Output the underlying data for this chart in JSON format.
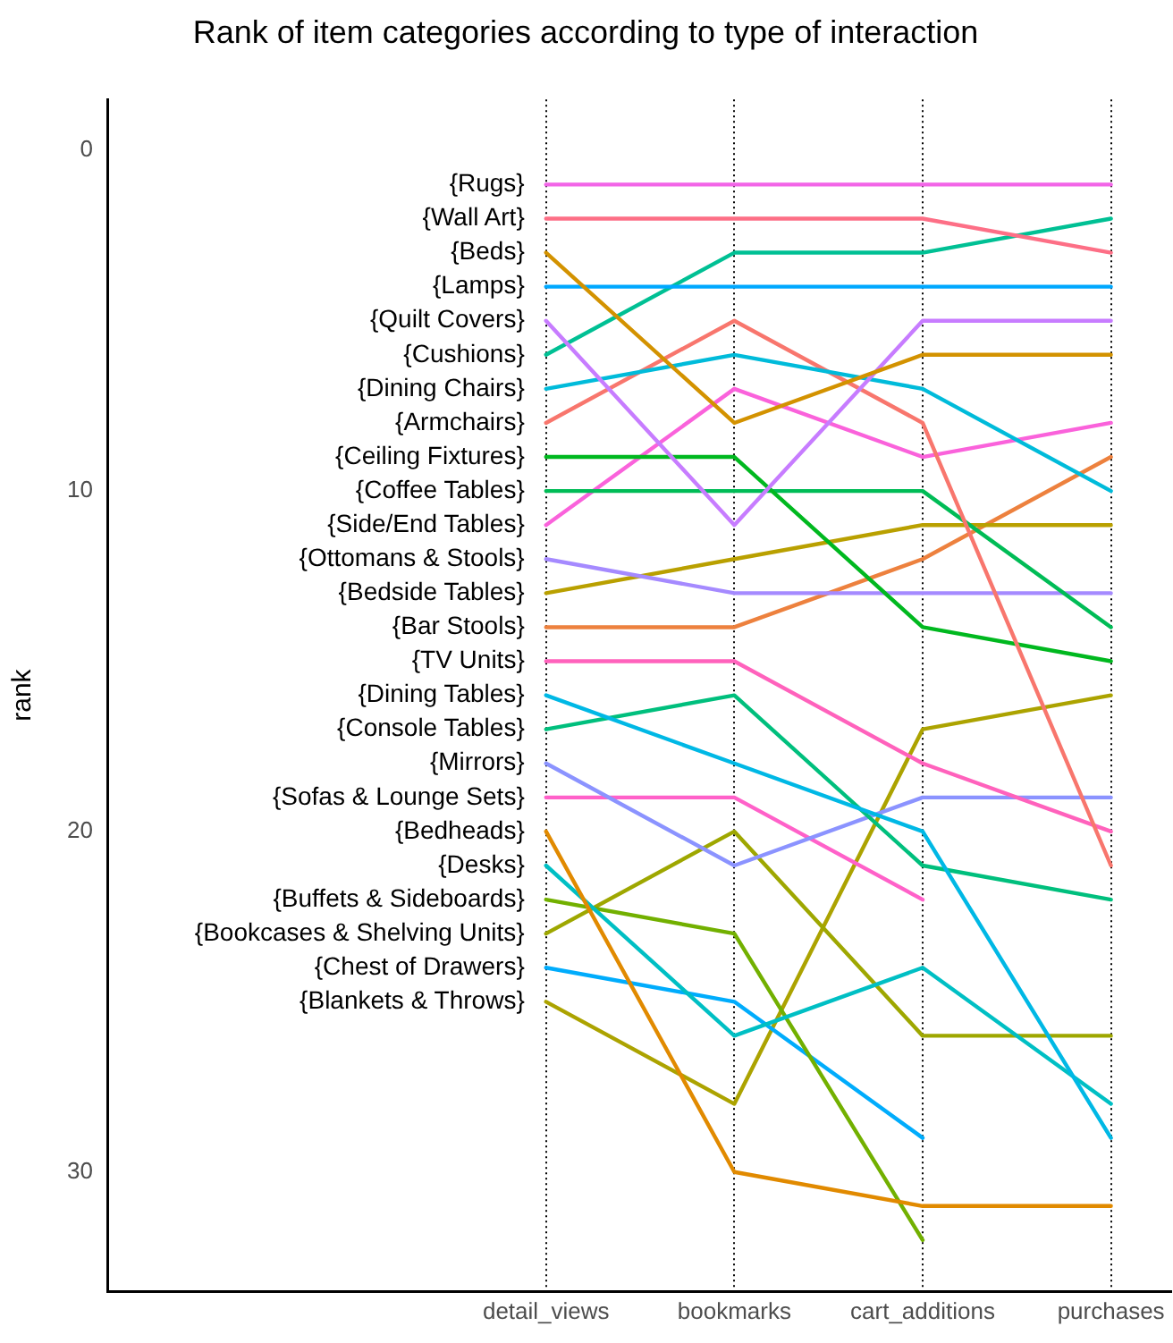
{
  "chart_data": {
    "type": "line",
    "title": "Rank of item categories according to type of interaction",
    "ylabel": "rank",
    "categories": [
      "detail_views",
      "bookmarks",
      "cart_additions",
      "purchases"
    ],
    "ylim": [
      33.5,
      -1.5
    ],
    "yticks": [
      0,
      10,
      20,
      30
    ],
    "grid": "x",
    "legend": false,
    "marker": "none",
    "line_style": "solid",
    "series": [
      {
        "name": "{Rugs}",
        "color": "#f265e7",
        "values": [
          1,
          1,
          1,
          1
        ]
      },
      {
        "name": "{Wall Art}",
        "color": "#fd6f86",
        "values": [
          2,
          2,
          2,
          3
        ]
      },
      {
        "name": "{Beds}",
        "color": "#d39200",
        "values": [
          3,
          8,
          6,
          6
        ]
      },
      {
        "name": "{Lamps}",
        "color": "#00a8ff",
        "values": [
          4,
          4,
          4,
          4
        ]
      },
      {
        "name": "{Quilt Covers}",
        "color": "#c77cff",
        "values": [
          5,
          11,
          5,
          5
        ]
      },
      {
        "name": "{Cushions}",
        "color": "#00c094",
        "values": [
          6,
          3,
          3,
          2
        ]
      },
      {
        "name": "{Dining Chairs}",
        "color": "#00bbda",
        "values": [
          7,
          6,
          7,
          10
        ]
      },
      {
        "name": "{Armchairs}",
        "color": "#f8766d",
        "values": [
          8,
          5,
          8,
          21
        ]
      },
      {
        "name": "{Ceiling Fixtures}",
        "color": "#00b81f",
        "values": [
          9,
          9,
          14,
          15
        ]
      },
      {
        "name": "{Coffee Tables}",
        "color": "#00bc56",
        "values": [
          10,
          10,
          10,
          14
        ]
      },
      {
        "name": "{Side/End Tables}",
        "color": "#fa62db",
        "values": [
          11,
          7,
          9,
          8
        ]
      },
      {
        "name": "{Ottomans & Stools}",
        "color": "#a58aff",
        "values": [
          12,
          13,
          13,
          13
        ]
      },
      {
        "name": "{Bedside Tables}",
        "color": "#b9a000",
        "values": [
          13,
          12,
          11,
          11
        ]
      },
      {
        "name": "{Bar Stools}",
        "color": "#ed813e",
        "values": [
          14,
          14,
          12,
          9
        ]
      },
      {
        "name": "{TV Units}",
        "color": "#ff62bc",
        "values": [
          15,
          15,
          18,
          20
        ]
      },
      {
        "name": "{Dining Tables}",
        "color": "#00b8e5",
        "values": [
          16,
          18,
          20,
          29
        ]
      },
      {
        "name": "{Console Tables}",
        "color": "#00bf7d",
        "values": [
          17,
          16,
          21,
          22
        ]
      },
      {
        "name": "{Mirrors}",
        "color": "#8b93ff",
        "values": [
          18,
          21,
          19,
          19
        ]
      },
      {
        "name": "{Sofas & Lounge Sets}",
        "color": "#ff61c9",
        "values": [
          19,
          19,
          22,
          null
        ]
      },
      {
        "name": "{Bedheads}",
        "color": "#e18a00",
        "values": [
          20,
          30,
          31,
          31
        ]
      },
      {
        "name": "{Desks}",
        "color": "#00bfc4",
        "values": [
          21,
          26,
          24,
          28
        ]
      },
      {
        "name": "{Buffets & Sideboards}",
        "color": "#72b000",
        "values": [
          22,
          23,
          32,
          null
        ]
      },
      {
        "name": "{Bookcases & Shelving Units}",
        "color": "#9ea700",
        "values": [
          23,
          20,
          26,
          26
        ]
      },
      {
        "name": "{Chest of Drawers}",
        "color": "#00acfc",
        "values": [
          24,
          25,
          29,
          null
        ]
      },
      {
        "name": "{Blankets & Throws}",
        "color": "#aca300",
        "values": [
          25,
          28,
          17,
          16
        ]
      }
    ]
  }
}
